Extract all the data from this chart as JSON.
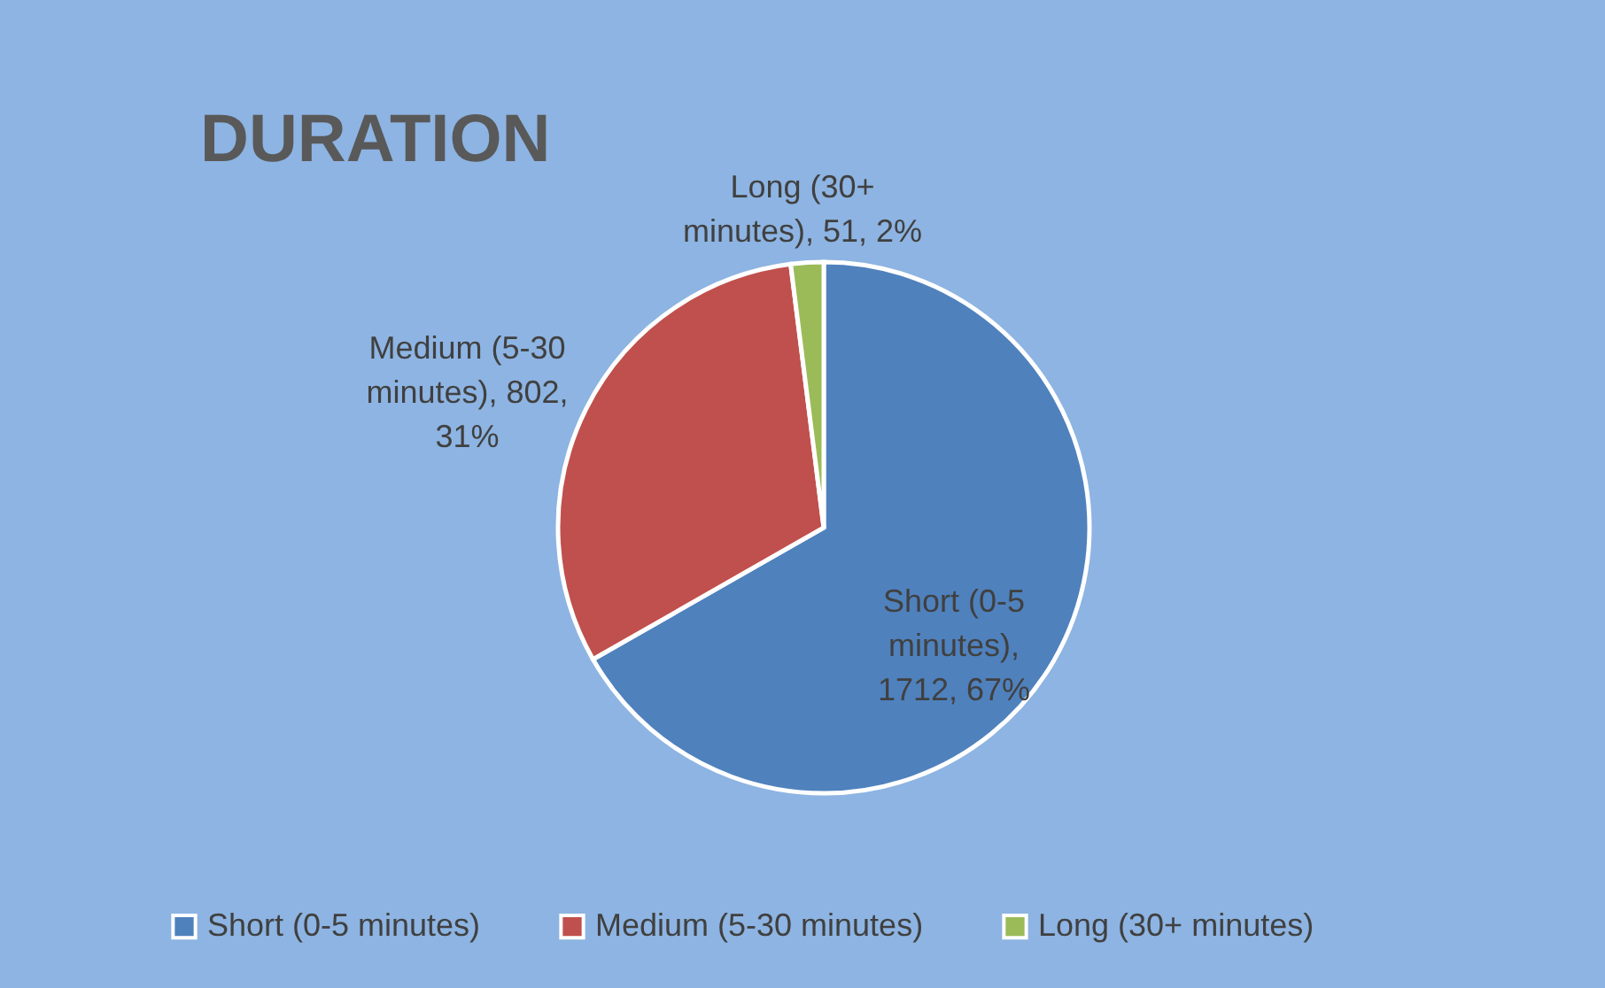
{
  "chart_data": {
    "type": "pie",
    "title": "DURATION",
    "categories": [
      "Short (0-5 minutes)",
      "Medium (5-30 minutes)",
      "Long (30+ minutes)"
    ],
    "values": [
      1712,
      802,
      51
    ],
    "colors": [
      "#4f81bd",
      "#c0504d",
      "#9bbb59"
    ],
    "value_labels": [
      "Short (0-5 minutes), 1712, 67%",
      "Medium (5-30 minutes), 802, 31%",
      "Long (30+ minutes), 51, 2%"
    ],
    "legend": "bottom"
  }
}
